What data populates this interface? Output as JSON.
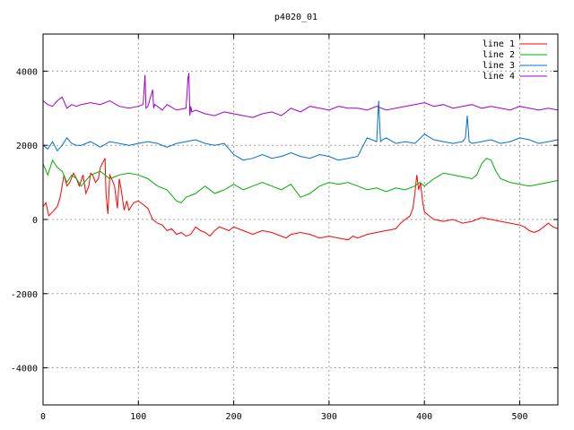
{
  "chart_data": {
    "type": "line",
    "title": "p4020_01",
    "xlabel": "",
    "ylabel": "",
    "xlim": [
      0,
      540
    ],
    "ylim": [
      -5000,
      5000
    ],
    "xticks": [
      0,
      100,
      200,
      300,
      400,
      500
    ],
    "yticks": [
      -4000,
      -2000,
      0,
      2000,
      4000
    ],
    "grid": true,
    "legend_position": "top-right",
    "series": [
      {
        "name": "line 1",
        "color": "#ff0000",
        "x": [
          0,
          3,
          6,
          10,
          15,
          18,
          22,
          25,
          28,
          32,
          35,
          38,
          42,
          45,
          48,
          50,
          52,
          55,
          58,
          60,
          62,
          65,
          66,
          68,
          70,
          72,
          75,
          78,
          80,
          82,
          85,
          88,
          90,
          95,
          100,
          105,
          110,
          115,
          120,
          125,
          130,
          135,
          140,
          145,
          150,
          155,
          160,
          165,
          170,
          175,
          180,
          185,
          190,
          195,
          200,
          205,
          210,
          220,
          230,
          240,
          250,
          255,
          260,
          270,
          280,
          290,
          300,
          310,
          320,
          325,
          330,
          340,
          350,
          360,
          370,
          375,
          380,
          385,
          388,
          390,
          392,
          394,
          396,
          398,
          400,
          405,
          410,
          420,
          430,
          440,
          450,
          460,
          470,
          480,
          490,
          500,
          505,
          510,
          515,
          520,
          525,
          530,
          535,
          540
        ],
        "values": [
          350,
          450,
          100,
          200,
          350,
          600,
          1200,
          900,
          1000,
          1250,
          1100,
          900,
          1200,
          700,
          900,
          1250,
          1200,
          1000,
          1100,
          1400,
          1500,
          1650,
          700,
          150,
          1200,
          1100,
          900,
          300,
          1100,
          800,
          250,
          500,
          250,
          450,
          500,
          400,
          300,
          0,
          -100,
          -150,
          -300,
          -250,
          -400,
          -350,
          -450,
          -400,
          -200,
          -300,
          -350,
          -450,
          -300,
          -200,
          -250,
          -300,
          -200,
          -250,
          -300,
          -400,
          -300,
          -350,
          -450,
          -500,
          -400,
          -350,
          -400,
          -500,
          -450,
          -500,
          -550,
          -450,
          -500,
          -400,
          -350,
          -300,
          -250,
          -100,
          0,
          100,
          300,
          700,
          1200,
          800,
          1000,
          500,
          200,
          100,
          0,
          -50,
          0,
          -100,
          -50,
          50,
          0,
          -50,
          -100,
          -150,
          -200,
          -300,
          -350,
          -300,
          -200,
          -100,
          -200,
          -250
        ]
      },
      {
        "name": "line 2",
        "color": "#00b000",
        "x": [
          0,
          5,
          10,
          15,
          20,
          25,
          30,
          35,
          40,
          50,
          60,
          70,
          80,
          90,
          100,
          110,
          120,
          130,
          140,
          145,
          150,
          160,
          170,
          180,
          190,
          200,
          210,
          220,
          230,
          240,
          250,
          260,
          270,
          280,
          290,
          300,
          310,
          320,
          330,
          340,
          350,
          360,
          370,
          380,
          390,
          395,
          400,
          410,
          420,
          430,
          440,
          450,
          455,
          460,
          465,
          470,
          475,
          480,
          490,
          500,
          510,
          520,
          530,
          540
        ],
        "values": [
          1500,
          1200,
          1600,
          1400,
          1300,
          1000,
          1200,
          1100,
          900,
          1200,
          1300,
          1100,
          1200,
          1250,
          1200,
          1100,
          900,
          800,
          500,
          450,
          600,
          700,
          900,
          700,
          800,
          950,
          800,
          900,
          1000,
          900,
          800,
          950,
          600,
          700,
          900,
          1000,
          950,
          1000,
          900,
          800,
          850,
          750,
          850,
          800,
          900,
          1000,
          900,
          1100,
          1250,
          1200,
          1150,
          1100,
          1200,
          1500,
          1650,
          1600,
          1300,
          1100,
          1000,
          950,
          900,
          950,
          1000,
          1050
        ]
      },
      {
        "name": "line 3",
        "color": "#0070d0",
        "x": [
          0,
          5,
          10,
          15,
          20,
          25,
          30,
          35,
          40,
          50,
          60,
          70,
          80,
          90,
          100,
          110,
          120,
          130,
          140,
          150,
          160,
          170,
          180,
          190,
          200,
          210,
          220,
          230,
          240,
          250,
          260,
          270,
          280,
          290,
          300,
          310,
          320,
          330,
          340,
          345,
          350,
          352,
          354,
          356,
          360,
          370,
          380,
          390,
          400,
          410,
          420,
          430,
          440,
          443,
          445,
          447,
          450,
          460,
          470,
          480,
          490,
          500,
          510,
          520,
          530,
          540
        ],
        "values": [
          2000,
          1900,
          2100,
          1850,
          2000,
          2200,
          2050,
          2000,
          2000,
          2100,
          1950,
          2100,
          2050,
          2000,
          2050,
          2100,
          2050,
          1950,
          2050,
          2100,
          2150,
          2050,
          2000,
          2050,
          1750,
          1600,
          1650,
          1750,
          1650,
          1700,
          1800,
          1700,
          1650,
          1750,
          1700,
          1600,
          1650,
          1700,
          2200,
          2150,
          2100,
          3200,
          2100,
          2150,
          2200,
          2050,
          2100,
          2050,
          2300,
          2150,
          2100,
          2050,
          2100,
          2200,
          2800,
          2100,
          2050,
          2100,
          2150,
          2050,
          2100,
          2200,
          2150,
          2050,
          2100,
          2150
        ]
      },
      {
        "name": "line 4",
        "color": "#a000d0",
        "x": [
          0,
          5,
          10,
          15,
          20,
          25,
          30,
          35,
          40,
          50,
          60,
          70,
          80,
          90,
          100,
          105,
          107,
          108,
          110,
          115,
          116,
          117,
          120,
          125,
          130,
          140,
          150,
          152,
          153,
          154,
          155,
          156,
          160,
          170,
          180,
          190,
          200,
          210,
          220,
          230,
          240,
          250,
          260,
          270,
          280,
          290,
          300,
          310,
          320,
          330,
          340,
          350,
          360,
          370,
          380,
          390,
          400,
          410,
          420,
          430,
          440,
          450,
          460,
          470,
          480,
          490,
          500,
          510,
          520,
          530,
          540
        ],
        "values": [
          3200,
          3100,
          3050,
          3200,
          3300,
          3000,
          3100,
          3050,
          3100,
          3150,
          3100,
          3200,
          3050,
          3000,
          3050,
          3100,
          3900,
          3000,
          3050,
          3500,
          3000,
          3100,
          3050,
          2950,
          3100,
          2950,
          3000,
          3800,
          3950,
          2800,
          3050,
          2900,
          2950,
          2850,
          2800,
          2900,
          2850,
          2800,
          2750,
          2850,
          2900,
          2800,
          3000,
          2900,
          3050,
          3000,
          2950,
          3050,
          3000,
          3000,
          2950,
          3050,
          2950,
          3000,
          3050,
          3100,
          3150,
          3050,
          3100,
          3000,
          3050,
          3100,
          3000,
          3050,
          3000,
          2950,
          3050,
          3000,
          2950,
          3000,
          2950
        ]
      }
    ]
  }
}
